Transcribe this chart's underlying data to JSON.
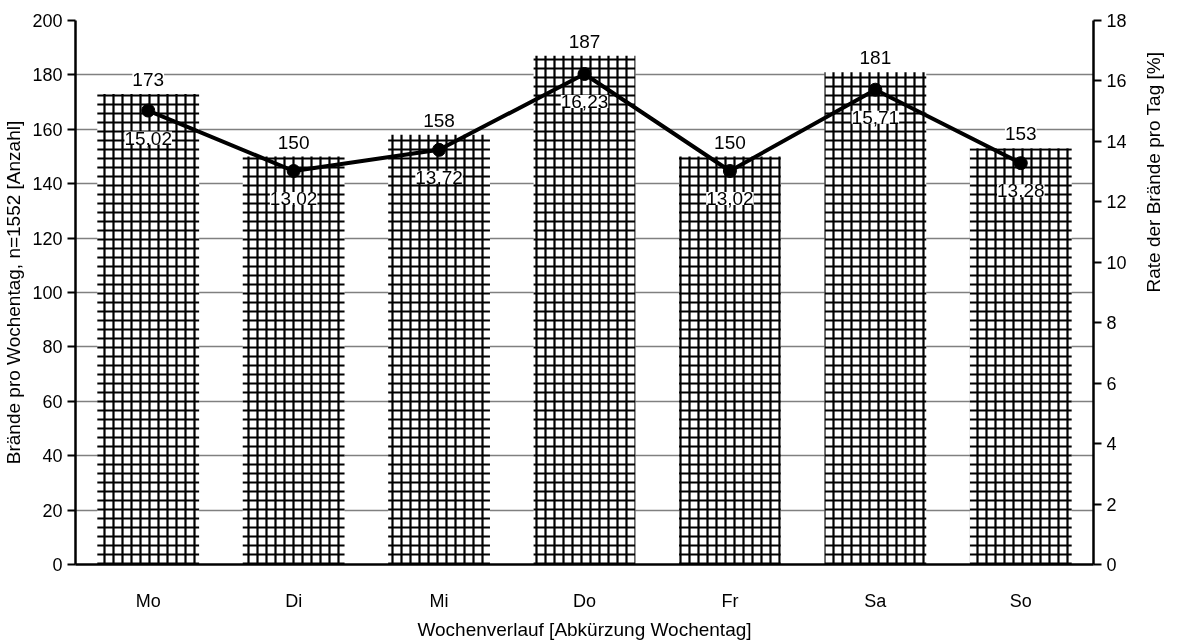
{
  "chart_data": {
    "type": "bar",
    "xlabel": "Wochenverlauf [Abkürzung Wochentag]",
    "ylabel": "Brände pro Wochentag, n=1552 [Anzahl]",
    "y2label": "Rate der Brände pro Tag [%]",
    "categories": [
      "Mo",
      "Di",
      "Mi",
      "Do",
      "Fr",
      "Sa",
      "So"
    ],
    "series": [
      {
        "color": "#000000",
        "values": [
          173,
          150,
          158,
          187,
          150,
          181,
          153
        ],
        "value_labels": [
          "173",
          "150",
          "158",
          "187",
          "150",
          "181",
          "153"
        ]
      },
      {
        "type": "line",
        "axis": "y2",
        "color": "#000000",
        "marker": "circle",
        "line_style": "solid",
        "values": [
          15.02,
          13.02,
          13.72,
          16.23,
          13.02,
          15.71,
          13.28
        ],
        "value_labels": [
          "15,02",
          "13,02",
          "13,72",
          "16,23",
          "13,02",
          "15,71",
          "13,28"
        ]
      }
    ],
    "ylim": [
      0,
      200
    ],
    "yticks": [
      0,
      20,
      40,
      60,
      80,
      100,
      120,
      140,
      160,
      180,
      200
    ],
    "y2lim": [
      0,
      18
    ],
    "y2ticks": [
      0,
      2,
      4,
      6,
      8,
      10,
      12,
      14,
      16,
      18
    ],
    "grid": "y"
  }
}
